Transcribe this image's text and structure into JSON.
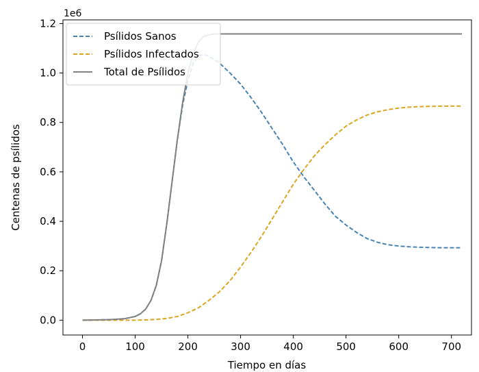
{
  "chart_data": {
    "type": "line",
    "title": "",
    "xlabel": "Tiempo en días",
    "ylabel": "Centenas de psílidos",
    "y_offset_label": "1e6",
    "xlim": [
      -37,
      738
    ],
    "ylim": [
      -0.06,
      1.215
    ],
    "x_ticks": [
      0,
      100,
      200,
      300,
      400,
      500,
      600,
      700
    ],
    "y_ticks": [
      0.0,
      0.2,
      0.4,
      0.6,
      0.8,
      1.0,
      1.2
    ],
    "x_tick_labels": [
      "0",
      "100",
      "200",
      "300",
      "400",
      "500",
      "600",
      "700"
    ],
    "y_tick_labels": [
      "0.0",
      "0.2",
      "0.4",
      "0.6",
      "0.8",
      "1.0",
      "1.2"
    ],
    "grid": false,
    "legend_position": "upper left",
    "series": [
      {
        "name": "Psílidos Sanos",
        "color": "#4682B4",
        "style": "dashed",
        "x": [
          0,
          50,
          80,
          100,
          110,
          120,
          130,
          140,
          150,
          160,
          170,
          180,
          190,
          200,
          210,
          220,
          230,
          240,
          250,
          260,
          280,
          300,
          320,
          340,
          360,
          380,
          400,
          420,
          440,
          460,
          480,
          500,
          520,
          540,
          560,
          580,
          600,
          620,
          640,
          660,
          680,
          700,
          720
        ],
        "y": [
          0.0,
          0.002,
          0.006,
          0.015,
          0.026,
          0.045,
          0.08,
          0.14,
          0.24,
          0.39,
          0.56,
          0.73,
          0.87,
          0.97,
          1.04,
          1.07,
          1.075,
          1.068,
          1.055,
          1.04,
          1.0,
          0.955,
          0.9,
          0.84,
          0.775,
          0.71,
          0.64,
          0.58,
          0.525,
          0.47,
          0.42,
          0.385,
          0.355,
          0.33,
          0.315,
          0.305,
          0.3,
          0.297,
          0.295,
          0.294,
          0.293,
          0.293,
          0.293
        ]
      },
      {
        "name": "Psílidos Infectados",
        "color": "#DAA520",
        "style": "dashed",
        "x": [
          0,
          100,
          120,
          140,
          160,
          180,
          200,
          220,
          240,
          260,
          280,
          300,
          320,
          340,
          360,
          380,
          400,
          420,
          440,
          460,
          480,
          500,
          520,
          540,
          560,
          580,
          600,
          620,
          640,
          660,
          680,
          700,
          720
        ],
        "y": [
          0.0,
          0.0,
          0.001,
          0.003,
          0.007,
          0.015,
          0.03,
          0.05,
          0.08,
          0.115,
          0.16,
          0.215,
          0.275,
          0.34,
          0.41,
          0.48,
          0.55,
          0.61,
          0.665,
          0.71,
          0.75,
          0.785,
          0.81,
          0.83,
          0.843,
          0.852,
          0.858,
          0.862,
          0.864,
          0.865,
          0.866,
          0.866,
          0.866
        ]
      },
      {
        "name": "Total de Psílidos",
        "color": "#808080",
        "style": "solid",
        "x": [
          0,
          50,
          80,
          100,
          110,
          120,
          130,
          140,
          150,
          160,
          170,
          180,
          190,
          200,
          210,
          220,
          230,
          240,
          250,
          260,
          300,
          400,
          500,
          600,
          700,
          720
        ],
        "y": [
          0.0,
          0.002,
          0.006,
          0.015,
          0.026,
          0.045,
          0.08,
          0.14,
          0.24,
          0.39,
          0.56,
          0.73,
          0.88,
          1.0,
          1.08,
          1.125,
          1.148,
          1.155,
          1.158,
          1.158,
          1.158,
          1.158,
          1.158,
          1.158,
          1.158,
          1.158
        ]
      }
    ]
  }
}
